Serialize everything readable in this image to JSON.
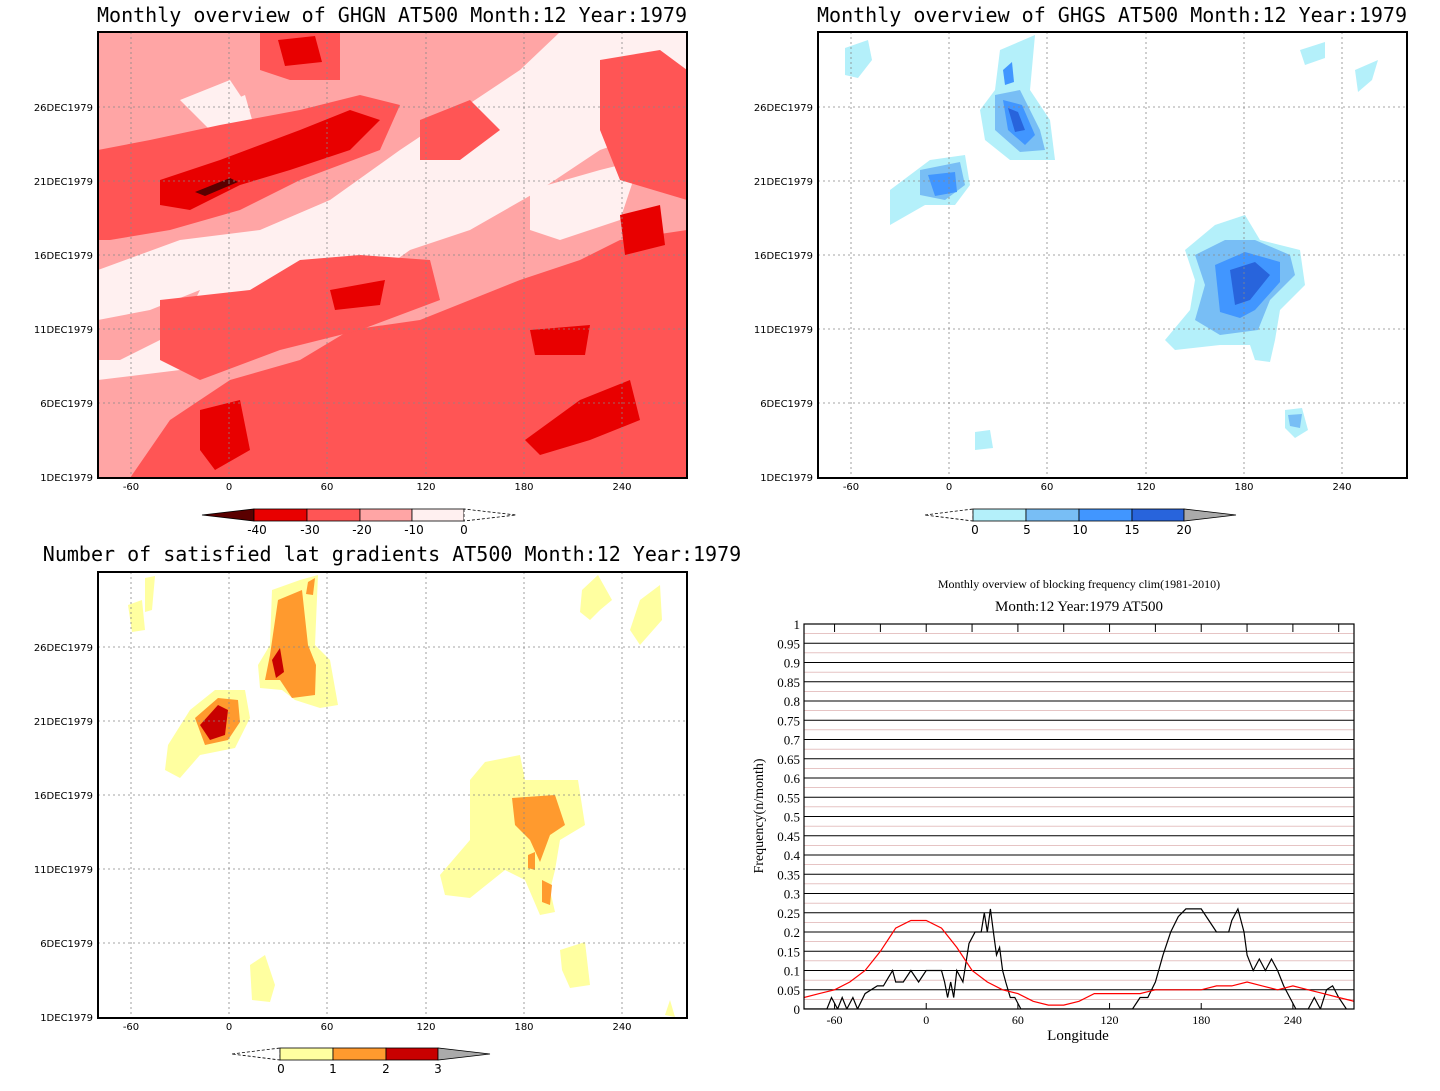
{
  "panels": [
    {
      "title": "Monthly overview of GHGN AT500 Month:12 Year:1979",
      "x_ticks": [
        "-60",
        "0",
        "60",
        "120",
        "180",
        "240"
      ],
      "y_ticks": [
        "1DEC1979",
        "6DEC1979",
        "11DEC1979",
        "16DEC1979",
        "21DEC1979",
        "26DEC1979"
      ],
      "colorbar": {
        "labels": [
          "-40",
          "-30",
          "-20",
          "-10",
          "0"
        ],
        "colors": [
          "#5a0000",
          "#e80000",
          "#ff5555",
          "#ffa5a5",
          "#fff0f0"
        ]
      }
    },
    {
      "title": "Monthly overview of GHGS AT500 Month:12 Year:1979",
      "x_ticks": [
        "-60",
        "0",
        "60",
        "120",
        "180",
        "240"
      ],
      "y_ticks": [
        "1DEC1979",
        "6DEC1979",
        "11DEC1979",
        "16DEC1979",
        "21DEC1979",
        "26DEC1979"
      ],
      "colorbar": {
        "labels": [
          "0",
          "5",
          "10",
          "15",
          "20"
        ],
        "colors": [
          "#b4f0fa",
          "#78bef5",
          "#4196ff",
          "#2864dc",
          "#aaaaaa"
        ]
      }
    },
    {
      "title": "Number of satisfied lat gradients AT500 Month:12 Year:1979",
      "x_ticks": [
        "-60",
        "0",
        "60",
        "120",
        "180",
        "240"
      ],
      "y_ticks": [
        "1DEC1979",
        "6DEC1979",
        "11DEC1979",
        "16DEC1979",
        "21DEC1979",
        "26DEC1979"
      ],
      "colorbar": {
        "labels": [
          "0",
          "1",
          "2",
          "3"
        ],
        "colors": [
          "#ffffa0",
          "#ff9a2e",
          "#c80000",
          "#aaaaaa"
        ]
      }
    }
  ],
  "chart_data": [
    {
      "type": "heatmap",
      "title": "Monthly overview of GHGN AT500 Month:12 Year:1979",
      "x_range": [
        -75,
        285
      ],
      "y_range_days": [
        1,
        31
      ],
      "levels": [
        -40,
        -30,
        -20,
        -10,
        0
      ],
      "colors": [
        "#5a0000",
        "#e80000",
        "#ff5555",
        "#ffa5a5",
        "#fff0f0"
      ],
      "grid": true
    },
    {
      "type": "heatmap",
      "title": "Monthly overview of GHGS AT500 Month:12 Year:1979",
      "x_range": [
        -75,
        285
      ],
      "y_range_days": [
        1,
        31
      ],
      "levels": [
        0,
        5,
        10,
        15,
        20
      ],
      "colors": [
        "#b4f0fa",
        "#78bef5",
        "#4196ff",
        "#2864dc",
        "#aaaaaa"
      ],
      "grid": true
    },
    {
      "type": "heatmap",
      "title": "Number of satisfied lat gradients AT500 Month:12 Year:1979",
      "x_range": [
        -75,
        285
      ],
      "y_range_days": [
        1,
        31
      ],
      "levels": [
        0,
        1,
        2,
        3
      ],
      "colors": [
        "#ffffa0",
        "#ff9a2e",
        "#c80000",
        "#aaaaaa"
      ],
      "grid": true
    },
    {
      "type": "line",
      "title": "Monthly overview of blocking frequency clim(1981-2010)",
      "subtitle": "Month:12 Year:1979  AT500",
      "xlabel": "Longitude",
      "ylabel": "Frequency(n/month)",
      "xlim": [
        -80,
        280
      ],
      "ylim": [
        0,
        1
      ],
      "x_ticks": [
        "-60",
        "0",
        "60",
        "120",
        "180",
        "240"
      ],
      "y_ticks": [
        "0",
        "0.05",
        "0.1",
        "0.15",
        "0.2",
        "0.25",
        "0.3",
        "0.35",
        "0.4",
        "0.45",
        "0.5",
        "0.55",
        "0.6",
        "0.65",
        "0.7",
        "0.75",
        "0.8",
        "0.85",
        "0.9",
        "0.95",
        "1"
      ],
      "series": [
        {
          "color": "#000000",
          "x": [
            -80,
            -65,
            -62,
            -58,
            -55,
            -52,
            -48,
            -45,
            -40,
            -32,
            -28,
            -22,
            -20,
            -15,
            -10,
            -5,
            0,
            5,
            8,
            10,
            12,
            14,
            16,
            18,
            20,
            24,
            28,
            32,
            36,
            38,
            40,
            42,
            44,
            46,
            48,
            50,
            52,
            55,
            58,
            62,
            65,
            135,
            140,
            145,
            150,
            155,
            160,
            165,
            170,
            175,
            180,
            185,
            190,
            195,
            198,
            200,
            204,
            208,
            210,
            214,
            218,
            222,
            226,
            230,
            234,
            238,
            242,
            246,
            250,
            254,
            258,
            262,
            266,
            270,
            275
          ],
          "y": [
            0,
            0,
            0.03,
            0,
            0.03,
            0,
            0.03,
            0,
            0.04,
            0.06,
            0.06,
            0.1,
            0.07,
            0.07,
            0.1,
            0.07,
            0.1,
            0.1,
            0.1,
            0.1,
            0.07,
            0.03,
            0.07,
            0.03,
            0.1,
            0.07,
            0.17,
            0.2,
            0.2,
            0.25,
            0.2,
            0.26,
            0.2,
            0.14,
            0.16,
            0.1,
            0.07,
            0.03,
            0.03,
            0,
            0,
            0,
            0.03,
            0.03,
            0.07,
            0.14,
            0.2,
            0.24,
            0.26,
            0.26,
            0.26,
            0.23,
            0.2,
            0.2,
            0.2,
            0.23,
            0.26,
            0.2,
            0.14,
            0.1,
            0.13,
            0.1,
            0.13,
            0.1,
            0.06,
            0.03,
            0,
            0,
            0,
            0.03,
            0,
            0.05,
            0.06,
            0.03,
            0
          ]
        },
        {
          "color": "#ff0000",
          "x": [
            -80,
            -70,
            -60,
            -50,
            -40,
            -30,
            -20,
            -10,
            0,
            10,
            20,
            30,
            40,
            50,
            60,
            70,
            80,
            90,
            100,
            110,
            120,
            130,
            140,
            150,
            160,
            170,
            180,
            190,
            200,
            210,
            220,
            230,
            240,
            250,
            260,
            270,
            280
          ],
          "y": [
            0.03,
            0.04,
            0.05,
            0.07,
            0.1,
            0.15,
            0.21,
            0.23,
            0.23,
            0.21,
            0.16,
            0.1,
            0.07,
            0.05,
            0.04,
            0.02,
            0.01,
            0.01,
            0.02,
            0.04,
            0.04,
            0.04,
            0.04,
            0.05,
            0.05,
            0.05,
            0.05,
            0.06,
            0.06,
            0.07,
            0.06,
            0.05,
            0.06,
            0.05,
            0.04,
            0.03,
            0.02
          ]
        }
      ]
    }
  ]
}
